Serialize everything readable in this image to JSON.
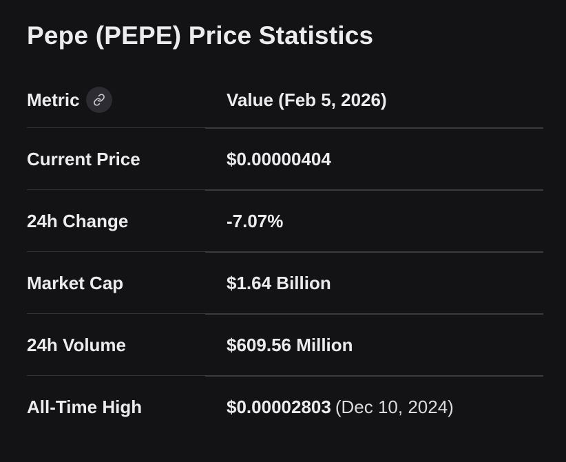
{
  "title": "Pepe (PEPE) Price Statistics",
  "table": {
    "headers": {
      "metric": "Metric",
      "value": "Value (Feb 5, 2026)",
      "link_icon": "link-icon"
    },
    "rows": [
      {
        "metric": "Current Price",
        "value": "$0.00000404",
        "note": ""
      },
      {
        "metric": "24h Change",
        "value": "-7.07%",
        "note": ""
      },
      {
        "metric": "Market Cap",
        "value": "$1.64 Billion",
        "note": ""
      },
      {
        "metric": "24h Volume",
        "value": "$609.56 Million",
        "note": ""
      },
      {
        "metric": "All-Time High",
        "value": "$0.00002803",
        "note": "(Dec 10, 2024)"
      }
    ]
  },
  "colors": {
    "background": "#131316",
    "text": "#ececef",
    "divider": "#3a3a40",
    "icon_button_bg": "#2c2c32"
  }
}
